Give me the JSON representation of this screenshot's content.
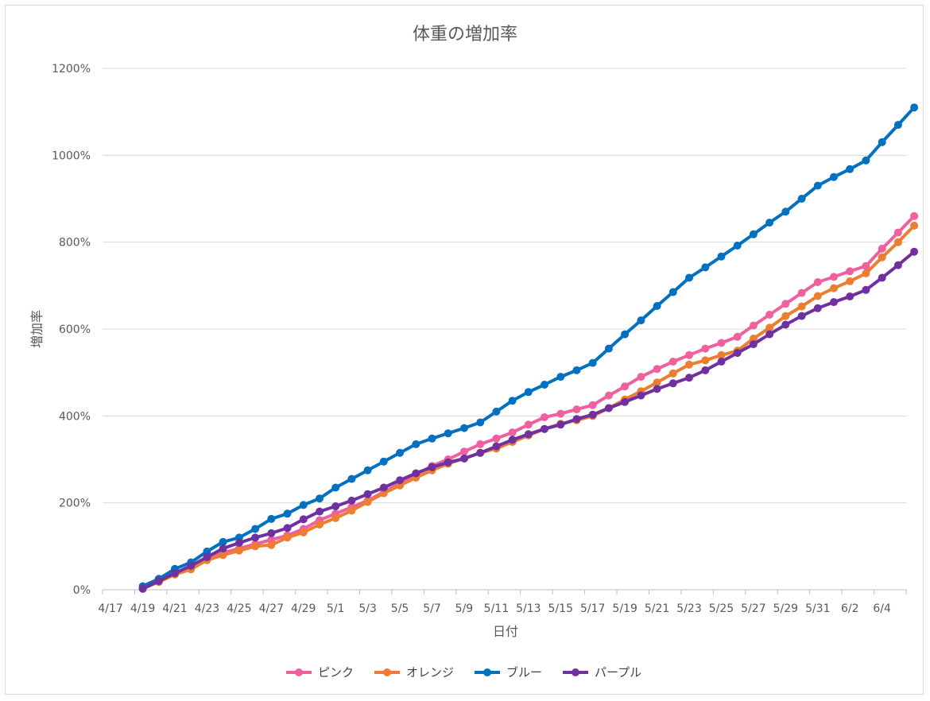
{
  "chart_data": {
    "type": "line",
    "title": "体重の増加率",
    "xlabel": "日付",
    "ylabel": "増加率",
    "ylim": [
      0,
      1200
    ],
    "yticks": [
      "0%",
      "200%",
      "400%",
      "600%",
      "800%",
      "1000%",
      "1200%"
    ],
    "x_tick_labels": [
      "4/17",
      "4/19",
      "4/21",
      "4/23",
      "4/25",
      "4/27",
      "4/29",
      "5/1",
      "5/3",
      "5/5",
      "5/7",
      "5/9",
      "5/11",
      "5/13",
      "5/15",
      "5/17",
      "5/19",
      "5/21",
      "5/23",
      "5/25",
      "5/27",
      "5/29",
      "5/31",
      "6/2",
      "6/4"
    ],
    "x": [
      "4/18",
      "4/19",
      "4/20",
      "4/21",
      "4/22",
      "4/23",
      "4/24",
      "4/25",
      "4/26",
      "4/27",
      "4/28",
      "4/29",
      "4/30",
      "5/1",
      "5/2",
      "5/3",
      "5/4",
      "5/5",
      "5/6",
      "5/7",
      "5/8",
      "5/9",
      "5/10",
      "5/11",
      "5/12",
      "5/13",
      "5/14",
      "5/15",
      "5/16",
      "5/17",
      "5/18",
      "5/19",
      "5/20",
      "5/21",
      "5/22",
      "5/23",
      "5/24",
      "5/25",
      "5/26",
      "5/27",
      "5/28",
      "5/29",
      "5/30",
      "5/31",
      "6/1",
      "6/2",
      "6/3",
      "6/4",
      "6/5"
    ],
    "grid": true,
    "legend_position": "bottom",
    "series": [
      {
        "name": "ピンク",
        "color": "#f0609e",
        "values": [
          5,
          20,
          38,
          52,
          72,
          85,
          95,
          105,
          115,
          125,
          140,
          160,
          175,
          190,
          205,
          225,
          245,
          265,
          285,
          300,
          318,
          335,
          348,
          362,
          380,
          397,
          405,
          415,
          425,
          447,
          468,
          490,
          508,
          525,
          540,
          555,
          568,
          582,
          608,
          633,
          658,
          683,
          708,
          720,
          733,
          745,
          785,
          822,
          860
        ]
      },
      {
        "name": "オレンジ",
        "color": "#ed7d31",
        "values": [
          3,
          18,
          35,
          47,
          68,
          80,
          90,
          100,
          103,
          120,
          132,
          150,
          165,
          182,
          202,
          222,
          240,
          258,
          275,
          290,
          302,
          315,
          325,
          340,
          355,
          370,
          382,
          390,
          400,
          418,
          438,
          457,
          477,
          498,
          518,
          528,
          540,
          550,
          578,
          603,
          630,
          652,
          676,
          694,
          710,
          728,
          765,
          800,
          838
        ]
      },
      {
        "name": "ブルー",
        "color": "#0070c0",
        "values": [
          8,
          25,
          48,
          63,
          88,
          110,
          120,
          140,
          163,
          175,
          195,
          210,
          235,
          255,
          275,
          295,
          315,
          335,
          348,
          360,
          372,
          385,
          410,
          435,
          455,
          472,
          490,
          505,
          522,
          555,
          588,
          620,
          653,
          685,
          718,
          742,
          767,
          792,
          818,
          845,
          870,
          900,
          930,
          950,
          968,
          988,
          1030,
          1070,
          1110
        ]
      },
      {
        "name": "パープル",
        "color": "#7030a0",
        "values": [
          2,
          20,
          38,
          55,
          75,
          95,
          108,
          120,
          130,
          142,
          162,
          180,
          192,
          205,
          220,
          235,
          252,
          268,
          282,
          293,
          302,
          315,
          330,
          345,
          358,
          370,
          380,
          393,
          403,
          418,
          432,
          447,
          462,
          475,
          488,
          505,
          525,
          545,
          565,
          588,
          610,
          630,
          648,
          662,
          675,
          690,
          718,
          747,
          778
        ]
      }
    ]
  }
}
